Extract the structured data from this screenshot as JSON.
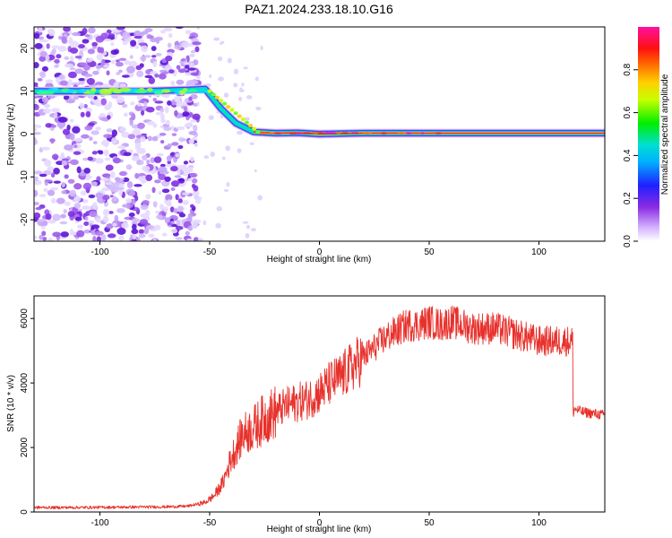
{
  "title": "PAZ1.2024.233.18.10.G16",
  "chart_data": [
    {
      "type": "heatmap",
      "xlabel": "Height of straight line (km)",
      "ylabel": "Frequency (Hz)",
      "xlim": [
        -130,
        130
      ],
      "ylim": [
        -25,
        25
      ],
      "xticks": [
        -100,
        -50,
        0,
        50,
        100
      ],
      "yticks": [
        -20,
        -10,
        0,
        10,
        20
      ],
      "colorbar": {
        "label": "Normalized spectral amplitude",
        "range": [
          0.0,
          1.0
        ],
        "ticks": [
          0.0,
          0.2,
          0.4,
          0.6,
          0.8
        ],
        "colormap": "rainbow (purple-blue-cyan-green-yellow-orange-red-magenta)"
      },
      "ridge": {
        "x": [
          -130,
          -100,
          -80,
          -60,
          -52,
          -45,
          -38,
          -30,
          -20,
          -10,
          0,
          20,
          50,
          130
        ],
        "y": [
          10,
          10,
          10,
          10.3,
          10.5,
          6,
          2.5,
          0.5,
          0.2,
          0.3,
          0.0,
          0.2,
          0.2,
          0.2
        ]
      },
      "noise_region": {
        "x": [
          -130,
          -55
        ]
      }
    },
    {
      "type": "line",
      "xlabel": "Height of straight line (km)",
      "ylabel": "SNR (10 * v/v)",
      "xlim": [
        -130,
        130
      ],
      "ylim": [
        0,
        6700
      ],
      "xticks": [
        -100,
        -50,
        0,
        50,
        100
      ],
      "yticks": [
        0,
        2000,
        4000,
        6000
      ],
      "color": "#e8312c",
      "series": [
        {
          "x": [
            -130,
            -110,
            -90,
            -70,
            -60,
            -52,
            -48,
            -44,
            -40,
            -35,
            -30,
            -25,
            -20,
            -15,
            -10,
            -5,
            0,
            5,
            10,
            15,
            20,
            25,
            30,
            35,
            40,
            45,
            50,
            55,
            60,
            65,
            70,
            75,
            80,
            85,
            90,
            95,
            100,
            105,
            110,
            114,
            116,
            120,
            125,
            130
          ],
          "y": [
            140,
            140,
            150,
            160,
            180,
            300,
            500,
            900,
            1700,
            2400,
            2600,
            2900,
            3100,
            3300,
            3400,
            3500,
            3700,
            4000,
            4200,
            4500,
            4800,
            5100,
            5400,
            5600,
            5800,
            5800,
            5900,
            5800,
            5900,
            5800,
            5700,
            5700,
            5700,
            5600,
            5500,
            5400,
            5300,
            5300,
            5300,
            5300,
            3200,
            3100,
            3050,
            3000
          ]
        }
      ]
    }
  ]
}
